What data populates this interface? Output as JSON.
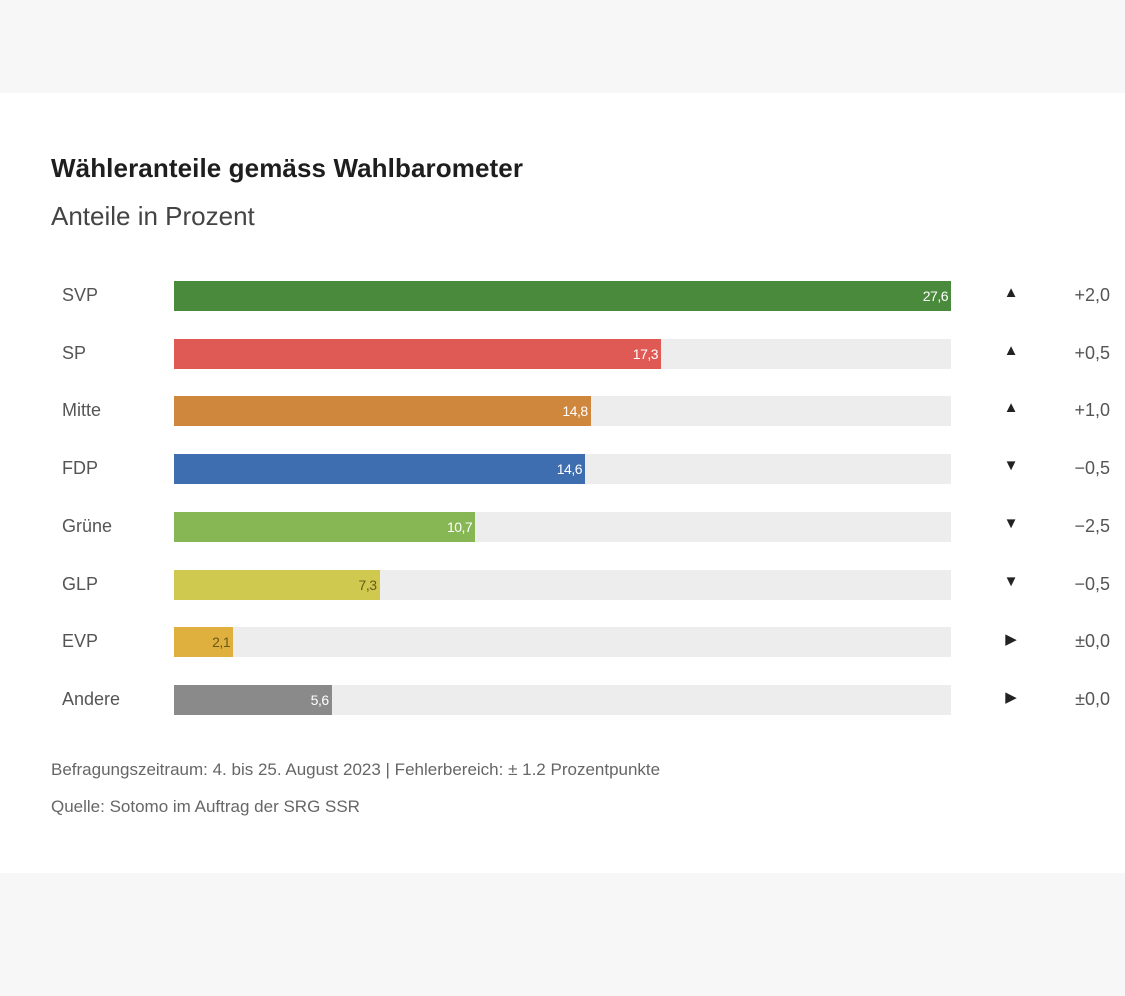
{
  "chart_data": {
    "type": "bar",
    "title": "Wähleranteile gemäss Wahlbarometer",
    "subtitle": "Anteile in Prozent",
    "categories": [
      "SVP",
      "SP",
      "Mitte",
      "FDP",
      "Grüne",
      "GLP",
      "EVP",
      "Andere"
    ],
    "values": [
      27.6,
      17.3,
      14.8,
      14.6,
      10.7,
      7.3,
      2.1,
      5.6
    ],
    "value_labels": [
      "27,6",
      "17,3",
      "14,8",
      "14,6",
      "10,7",
      "7,3",
      "2,1",
      "5,6"
    ],
    "changes": [
      "+2,0",
      "+0,5",
      "+1,0",
      "−0,5",
      "−2,5",
      "−0,5",
      "±0,0",
      "±0,0"
    ],
    "change_icons": [
      "up-triangle-icon",
      "up-triangle-icon",
      "up-triangle-icon",
      "down-triangle-icon",
      "down-triangle-icon",
      "down-triangle-icon",
      "right-triangle-icon",
      "right-triangle-icon"
    ],
    "colors": [
      "#4a8a3c",
      "#e05a55",
      "#cf873e",
      "#3e6db0",
      "#87b654",
      "#cfc94f",
      "#e0b03f",
      "#8a8a8a"
    ],
    "xlim": [
      0,
      27.6
    ],
    "orientation": "horizontal",
    "grid": false
  },
  "footer": {
    "period": "Befragungszeitraum: 4. bis 25. August 2023 | Fehlerbereich: ± 1.2 Prozentpunkte",
    "source": "Quelle: Sotomo im Auftrag der SRG SSR"
  }
}
